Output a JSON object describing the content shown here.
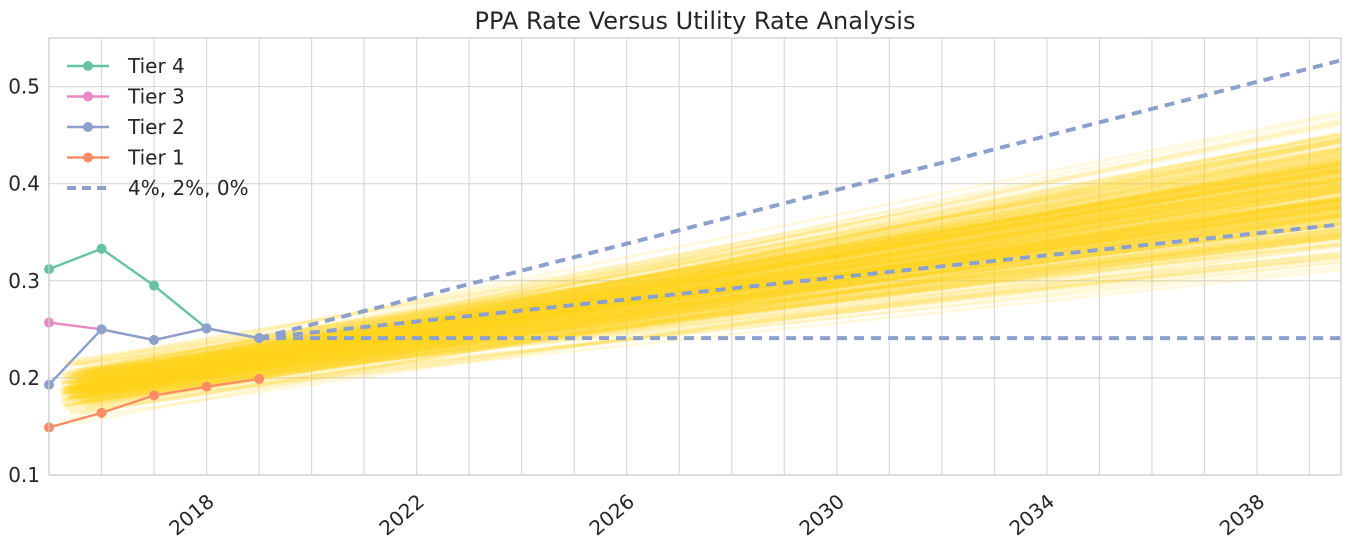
{
  "chart_data": {
    "type": "line",
    "title": "PPA Rate Versus Utility Rate Analysis",
    "xlabel": "",
    "ylabel": "",
    "x_range": [
      2015.0,
      2039.6
    ],
    "ylim": [
      0.1,
      0.55
    ],
    "x_ticks": [
      2018,
      2022,
      2026,
      2030,
      2034,
      2038
    ],
    "y_ticks": [
      0.1,
      0.2,
      0.3,
      0.4,
      0.5
    ],
    "grid": true,
    "legend_position": "top-left",
    "series": [
      {
        "name": "Tier 4",
        "color": "#66c2a5",
        "marker": "circle",
        "x": [
          2015.0,
          2016.0,
          2017.0,
          2018.0,
          2019.0
        ],
        "y": [
          0.312,
          0.333,
          0.295,
          0.251,
          0.241
        ]
      },
      {
        "name": "Tier 3",
        "color": "#e78ac3",
        "marker": "circle",
        "x": [
          2015.0,
          2016.0,
          2017.0,
          2018.0,
          2019.0
        ],
        "y": [
          0.257,
          0.25,
          0.239,
          0.251,
          0.241
        ]
      },
      {
        "name": "Tier 2",
        "color": "#8da0cb",
        "marker": "circle",
        "x": [
          2015.0,
          2016.0,
          2017.0,
          2018.0,
          2019.0
        ],
        "y": [
          0.193,
          0.25,
          0.239,
          0.251,
          0.241
        ]
      },
      {
        "name": "Tier 1",
        "color": "#fc8d62",
        "marker": "circle",
        "x": [
          2015.0,
          2016.0,
          2017.0,
          2018.0,
          2019.0
        ],
        "y": [
          0.149,
          0.164,
          0.182,
          0.191,
          0.199
        ]
      }
    ],
    "projections": {
      "name": "4%, 2%, 0%",
      "color": "#8da0cb",
      "style": "dashed",
      "start_x": 2019.0,
      "end_x": 2039.6,
      "lines": [
        {
          "rate": "4%",
          "y_start": 0.241,
          "y_end": 0.527
        },
        {
          "rate": "2%",
          "y_start": 0.241,
          "y_end": 0.358
        },
        {
          "rate": "0%",
          "y_start": 0.241,
          "y_end": 0.241
        }
      ]
    },
    "simulation_band": {
      "color": "#ffd11a",
      "start_x": 2015.2,
      "end_x": 2039.6,
      "start_y_range": [
        0.14,
        0.235
      ],
      "end_y_range": [
        0.195,
        0.5
      ],
      "center_start": 0.19,
      "center_end": 0.39
    }
  }
}
